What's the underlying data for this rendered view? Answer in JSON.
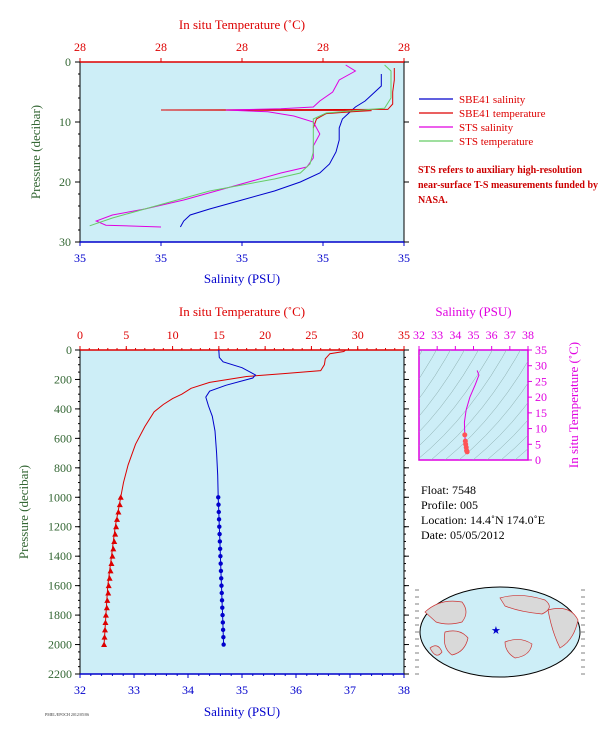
{
  "colors": {
    "panel_bg": "#cdeef7",
    "blue": "#0000cc",
    "red": "#dd0000",
    "magenta": "#e000e0",
    "green": "#66cc66",
    "tan": "#b8a27a",
    "ylabel": "#336633"
  },
  "chart_data": [
    {
      "type": "line",
      "x_top_label": "In situ Temperature (˚C)",
      "x_top_ticks": [
        "28",
        "28",
        "28",
        "28",
        "28"
      ],
      "x_bottom_label": "Salinity (PSU)",
      "x_bottom_ticks": [
        "35",
        "35",
        "35",
        "35",
        "35"
      ],
      "ylabel": "Pressure (decibar)",
      "y_ticks": [
        "0",
        "10",
        "20",
        "30"
      ],
      "ylim": [
        30,
        0
      ],
      "legend_placement": "right",
      "series": [
        {
          "name": "SBE41 salinity",
          "color_key": "blue",
          "points": [
            [
              0.93,
              2
            ],
            [
              0.93,
              4
            ],
            [
              0.9,
              5.5
            ],
            [
              0.88,
              6.5
            ],
            [
              0.85,
              7.5
            ],
            [
              0.83,
              8.5
            ],
            [
              0.81,
              9.5
            ],
            [
              0.8,
              11
            ],
            [
              0.8,
              13
            ],
            [
              0.79,
              15
            ],
            [
              0.77,
              17
            ],
            [
              0.74,
              18.5
            ],
            [
              0.68,
              20
            ],
            [
              0.6,
              21.5
            ],
            [
              0.5,
              23
            ],
            [
              0.4,
              24.5
            ],
            [
              0.34,
              25.5
            ],
            [
              0.32,
              26.5
            ],
            [
              0.31,
              27.5
            ]
          ]
        },
        {
          "name": "SBE41 temperature",
          "color_key": "red",
          "points": [
            [
              0.97,
              1
            ],
            [
              0.97,
              3
            ],
            [
              0.965,
              5
            ],
            [
              0.965,
              7
            ],
            [
              0.95,
              7.9
            ],
            [
              0.25,
              8.0
            ],
            [
              0.9,
              8.1
            ],
            [
              0.84,
              8.3
            ],
            [
              0.76,
              8.6
            ],
            [
              0.73,
              9.5
            ],
            [
              0.72,
              11
            ]
          ]
        },
        {
          "name": "STS salinity",
          "color_key": "magenta",
          "points": [
            [
              0.82,
              0.5
            ],
            [
              0.85,
              1.5
            ],
            [
              0.8,
              3
            ],
            [
              0.78,
              5
            ],
            [
              0.74,
              6.5
            ],
            [
              0.72,
              7.5
            ],
            [
              0.62,
              7.8
            ],
            [
              0.45,
              8.0
            ],
            [
              0.58,
              8.3
            ],
            [
              0.66,
              9
            ],
            [
              0.72,
              10
            ],
            [
              0.74,
              12
            ],
            [
              0.72,
              14
            ],
            [
              0.72,
              16
            ],
            [
              0.7,
              17.5
            ],
            [
              0.62,
              18.5
            ],
            [
              0.52,
              20
            ],
            [
              0.42,
              21.5
            ],
            [
              0.32,
              23
            ],
            [
              0.2,
              24.5
            ],
            [
              0.1,
              25.5
            ],
            [
              0.05,
              26.5
            ],
            [
              0.08,
              27.2
            ],
            [
              0.25,
              27.5
            ]
          ]
        },
        {
          "name": "STS temperature",
          "color_key": "green",
          "points": [
            [
              0.94,
              0.5
            ],
            [
              0.96,
              1.5
            ],
            [
              0.96,
              4
            ],
            [
              0.96,
              6
            ],
            [
              0.94,
              7.7
            ],
            [
              0.85,
              8.1
            ],
            [
              0.76,
              8.5
            ],
            [
              0.72,
              9.5
            ],
            [
              0.72,
              11
            ],
            [
              0.72,
              13
            ],
            [
              0.72,
              15
            ],
            [
              0.71,
              17
            ],
            [
              0.68,
              18.5
            ],
            [
              0.6,
              19.5
            ],
            [
              0.5,
              20.5
            ],
            [
              0.4,
              21.5
            ],
            [
              0.3,
              23
            ],
            [
              0.2,
              24.5
            ],
            [
              0.1,
              26
            ],
            [
              0.03,
              27.3
            ]
          ]
        }
      ]
    },
    {
      "type": "line",
      "x_top_label": "In situ Temperature (˚C)",
      "x_top_ticks": [
        "0",
        "5",
        "10",
        "15",
        "20",
        "25",
        "30",
        "35"
      ],
      "xlim_top": [
        0,
        35
      ],
      "x_bottom_label": "Salinity (PSU)",
      "x_bottom_ticks": [
        "32",
        "33",
        "34",
        "35",
        "36",
        "37",
        "38"
      ],
      "xlim_bottom": [
        32,
        38
      ],
      "ylabel": "Pressure (decibar)",
      "y_ticks": [
        "0",
        "200",
        "400",
        "600",
        "800",
        "1000",
        "1200",
        "1400",
        "1600",
        "1800",
        "2000",
        "2200"
      ],
      "ylim": [
        2200,
        0
      ],
      "series": [
        {
          "name": "temperature",
          "color_key": "red",
          "axis": "top",
          "points": [
            [
              28.7,
              0
            ],
            [
              28.5,
              10
            ],
            [
              27,
              25
            ],
            [
              26.5,
              60
            ],
            [
              26.4,
              100
            ],
            [
              26,
              140
            ],
            [
              22,
              160
            ],
            [
              18,
              180
            ],
            [
              14,
              220
            ],
            [
              12,
              260
            ],
            [
              11,
              300
            ],
            [
              10,
              330
            ],
            [
              9,
              370
            ],
            [
              8,
              420
            ],
            [
              7,
              520
            ],
            [
              6,
              640
            ],
            [
              5.2,
              780
            ],
            [
              4.7,
              900
            ],
            [
              4.4,
              1000
            ],
            [
              4.1,
              1100
            ],
            [
              3.8,
              1200
            ],
            [
              3.6,
              1300
            ],
            [
              3.4,
              1400
            ],
            [
              3.2,
              1500
            ],
            [
              3.0,
              1600
            ],
            [
              2.9,
              1700
            ],
            [
              2.8,
              1800
            ],
            [
              2.7,
              1900
            ],
            [
              2.6,
              2000
            ]
          ]
        },
        {
          "name": "salinity",
          "color_key": "blue",
          "axis": "bottom",
          "points": [
            [
              34.57,
              0
            ],
            [
              34.58,
              50
            ],
            [
              34.65,
              80
            ],
            [
              35.0,
              120
            ],
            [
              35.25,
              170
            ],
            [
              35.2,
              190
            ],
            [
              34.7,
              240
            ],
            [
              34.4,
              280
            ],
            [
              34.33,
              320
            ],
            [
              34.38,
              380
            ],
            [
              34.45,
              450
            ],
            [
              34.5,
              550
            ],
            [
              34.53,
              700
            ],
            [
              34.55,
              850
            ],
            [
              34.56,
              1000
            ],
            [
              34.57,
              1100
            ],
            [
              34.58,
              1200
            ],
            [
              34.59,
              1300
            ],
            [
              34.6,
              1400
            ],
            [
              34.61,
              1500
            ],
            [
              34.62,
              1600
            ],
            [
              34.63,
              1700
            ],
            [
              34.64,
              1800
            ],
            [
              34.65,
              1900
            ],
            [
              34.66,
              2000
            ]
          ]
        }
      ],
      "markers_red": [
        [
          4.4,
          1000
        ],
        [
          4.3,
          1050
        ],
        [
          4.15,
          1100
        ],
        [
          4.0,
          1150
        ],
        [
          3.9,
          1200
        ],
        [
          3.8,
          1250
        ],
        [
          3.7,
          1300
        ],
        [
          3.6,
          1350
        ],
        [
          3.5,
          1400
        ],
        [
          3.4,
          1450
        ],
        [
          3.3,
          1500
        ],
        [
          3.2,
          1550
        ],
        [
          3.1,
          1600
        ],
        [
          3.05,
          1650
        ],
        [
          2.95,
          1700
        ],
        [
          2.9,
          1750
        ],
        [
          2.8,
          1800
        ],
        [
          2.75,
          1850
        ],
        [
          2.7,
          1900
        ],
        [
          2.65,
          1950
        ],
        [
          2.6,
          2000
        ]
      ],
      "markers_blue": [
        [
          34.56,
          1000
        ],
        [
          34.565,
          1050
        ],
        [
          34.57,
          1100
        ],
        [
          34.575,
          1150
        ],
        [
          34.58,
          1200
        ],
        [
          34.585,
          1250
        ],
        [
          34.59,
          1300
        ],
        [
          34.595,
          1350
        ],
        [
          34.6,
          1400
        ],
        [
          34.605,
          1450
        ],
        [
          34.61,
          1500
        ],
        [
          34.615,
          1550
        ],
        [
          34.62,
          1600
        ],
        [
          34.625,
          1650
        ],
        [
          34.63,
          1700
        ],
        [
          34.635,
          1750
        ],
        [
          34.64,
          1800
        ],
        [
          34.645,
          1850
        ],
        [
          34.65,
          1900
        ],
        [
          34.655,
          1950
        ],
        [
          34.66,
          2000
        ]
      ]
    },
    {
      "type": "scatter",
      "x_label": "Salinity (PSU)",
      "x_ticks": [
        "32",
        "33",
        "34",
        "35",
        "36",
        "37",
        "38"
      ],
      "xlim": [
        32,
        38
      ],
      "y_label": "In situ Temperature (˚C)",
      "y_ticks": [
        "0",
        "5",
        "10",
        "15",
        "20",
        "25",
        "30",
        "35"
      ],
      "ylim": [
        0,
        35
      ],
      "ts_points": [
        [
          35.2,
          28.5
        ],
        [
          35.3,
          27
        ],
        [
          35.1,
          24
        ],
        [
          34.8,
          20
        ],
        [
          34.6,
          16
        ],
        [
          34.5,
          12
        ],
        [
          34.52,
          8
        ],
        [
          34.55,
          6
        ],
        [
          34.57,
          5
        ],
        [
          34.6,
          4
        ],
        [
          34.62,
          3
        ],
        [
          34.65,
          2.6
        ]
      ]
    }
  ],
  "legend": [
    {
      "label": "SBE41 salinity",
      "color_key": "blue"
    },
    {
      "label": "SBE41 temperature",
      "color_key": "red"
    },
    {
      "label": "STS salinity",
      "color_key": "magenta"
    },
    {
      "label": "STS temperature",
      "color_key": "green"
    }
  ],
  "note": "STS refers to auxiliary high-resolution near-surface T-S measurements funded by NASA.",
  "info": {
    "float": "Float:  7548",
    "profile": "Profile:  005",
    "location": "Location:  14.4˚N  174.0˚E",
    "date": "Date:  05/05/2012"
  },
  "map": {
    "marker_color": "#0000cc"
  },
  "footer": "PMEL/EPOCH  2012/05/06"
}
